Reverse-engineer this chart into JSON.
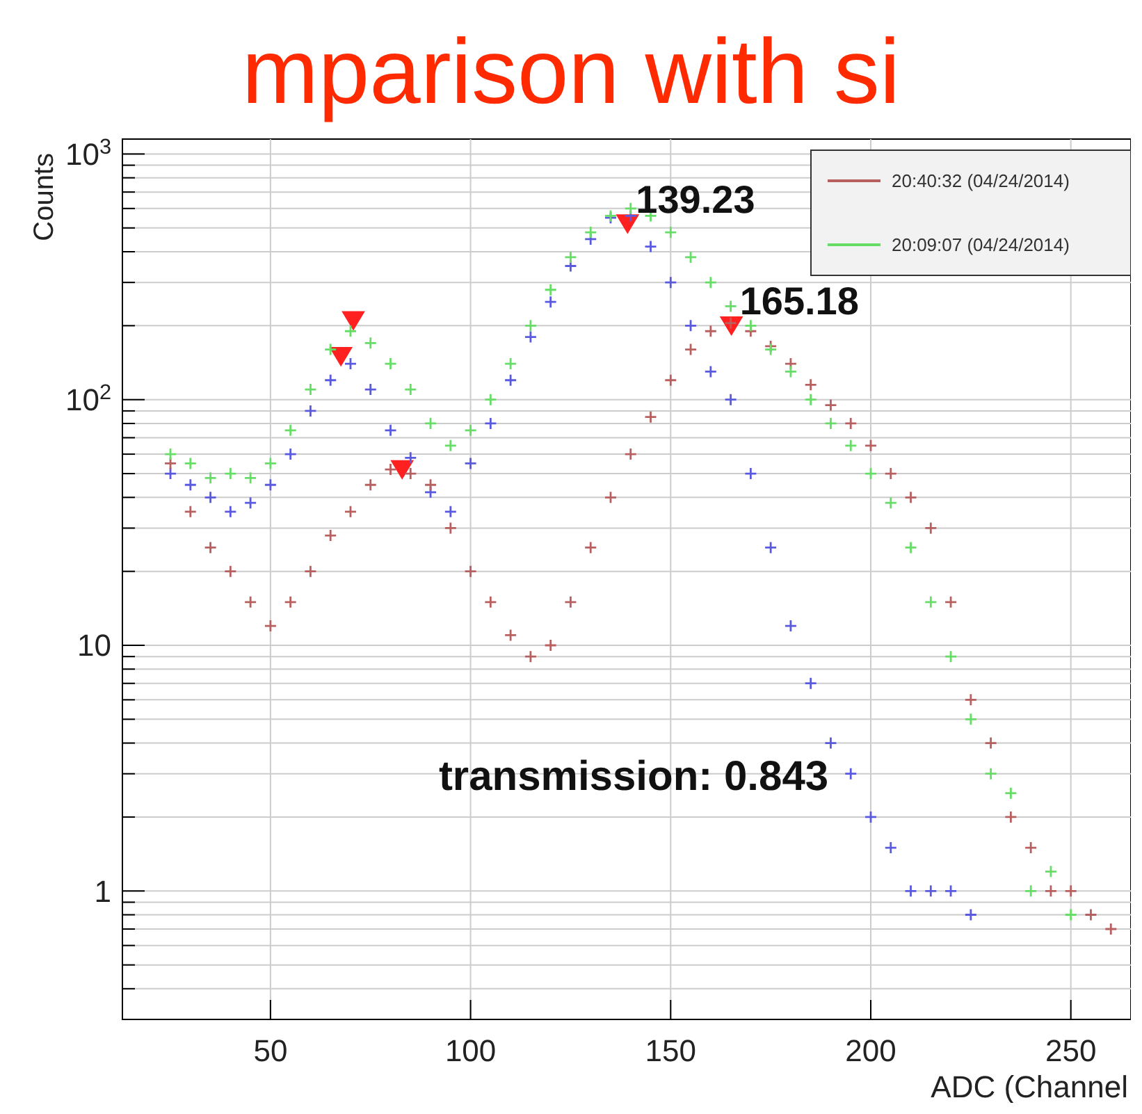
{
  "chart_data": {
    "type": "scatter",
    "title": "mparison with si",
    "xlabel": "ADC (Channel",
    "ylabel": "Counts",
    "log": "y",
    "grid": true,
    "legend": "top right",
    "marker": "cross",
    "xlim": [
      13,
      265
    ],
    "xticks": [
      50,
      100,
      150,
      200,
      250
    ],
    "ylim": [
      0.3,
      1150
    ],
    "yticks": [
      {
        "value": 0.4,
        "label": null
      },
      {
        "value": 0.5,
        "label": null
      },
      {
        "value": 0.6,
        "label": null
      },
      {
        "value": 0.7,
        "label": null
      },
      {
        "value": 0.8,
        "label": null
      },
      {
        "value": 0.9,
        "label": null
      },
      1,
      {
        "value": 2,
        "label": null
      },
      {
        "value": 3,
        "label": null
      },
      {
        "value": 4,
        "label": null
      },
      {
        "value": 5,
        "label": null
      },
      {
        "value": 6,
        "label": null
      },
      {
        "value": 7,
        "label": null
      },
      {
        "value": 8,
        "label": null
      },
      {
        "value": 9,
        "label": null
      },
      10,
      {
        "value": 20,
        "label": null
      },
      {
        "value": 30,
        "label": null
      },
      {
        "value": 40,
        "label": null
      },
      {
        "value": 50,
        "label": null
      },
      {
        "value": 60,
        "label": null
      },
      {
        "value": 70,
        "label": null
      },
      {
        "value": 80,
        "label": null
      },
      {
        "value": 90,
        "label": null
      },
      {
        "value": 100,
        "label": "10$^{2}$"
      },
      {
        "value": 200,
        "label": null
      },
      {
        "value": 300,
        "label": null
      },
      {
        "value": 400,
        "label": null
      },
      {
        "value": 500,
        "label": null
      },
      {
        "value": 600,
        "label": null
      },
      {
        "value": 700,
        "label": null
      },
      {
        "value": 800,
        "label": null
      },
      {
        "value": 900,
        "label": null
      },
      {
        "value": 1000,
        "label": "10$^{3}$"
      }
    ],
    "x": [
      25,
      30,
      35,
      40,
      45,
      50,
      55,
      60,
      65,
      70,
      75,
      80,
      85,
      90,
      95,
      100,
      105,
      110,
      115,
      120,
      125,
      130,
      135,
      140,
      145,
      150,
      155,
      160,
      165,
      170,
      175,
      180,
      185,
      190,
      195,
      200,
      205,
      210,
      215,
      220,
      225,
      230,
      235,
      240,
      245,
      250,
      255,
      260
    ],
    "series": [
      {
        "color": "#5a5ae0",
        "values": [
          50,
          45,
          40,
          35,
          38,
          45,
          60,
          90,
          120,
          140,
          110,
          75,
          58,
          42,
          35,
          55,
          80,
          120,
          180,
          250,
          350,
          450,
          550,
          560,
          420,
          300,
          200,
          130,
          100,
          50,
          25,
          12,
          7,
          4,
          3,
          2,
          1.5,
          1,
          1,
          1,
          0.8,
          null,
          null,
          null,
          null,
          null,
          null,
          null
        ]
      },
      {
        "name": "20:40:32 (04/24/2014)",
        "color": "#b86060",
        "values": [
          55,
          35,
          25,
          20,
          15,
          12,
          15,
          20,
          28,
          35,
          45,
          52,
          50,
          45,
          30,
          20,
          15,
          11,
          9,
          10,
          15,
          25,
          40,
          60,
          85,
          120,
          160,
          190,
          205,
          190,
          165,
          140,
          115,
          95,
          80,
          65,
          50,
          40,
          30,
          15,
          6,
          4,
          2,
          1.5,
          1,
          1,
          0.8,
          0.7
        ]
      },
      {
        "name": "20:09:07 (04/24/2014)",
        "color": "#66dd66",
        "values": [
          60,
          55,
          48,
          50,
          48,
          55,
          75,
          110,
          160,
          190,
          170,
          140,
          110,
          80,
          65,
          75,
          100,
          140,
          200,
          280,
          380,
          480,
          560,
          600,
          560,
          480,
          380,
          300,
          240,
          200,
          160,
          130,
          100,
          80,
          65,
          50,
          38,
          25,
          15,
          9,
          5,
          3,
          2.5,
          1,
          1.2,
          0.8,
          null,
          null
        ]
      },
      {
        "color": "#ff2020",
        "marker": "triangle",
        "x": [
          67.6,
          70.7,
          82.9,
          139.23,
          165.18
        ],
        "values": [
          150,
          210,
          52,
          520,
          200
        ]
      }
    ],
    "annotations": [
      {
        "text": "139.23",
        "x": 139.23,
        "y": 520
      },
      {
        "text": "165.18",
        "x": 165.18,
        "y": 200
      },
      "transmission: 0.843"
    ]
  }
}
